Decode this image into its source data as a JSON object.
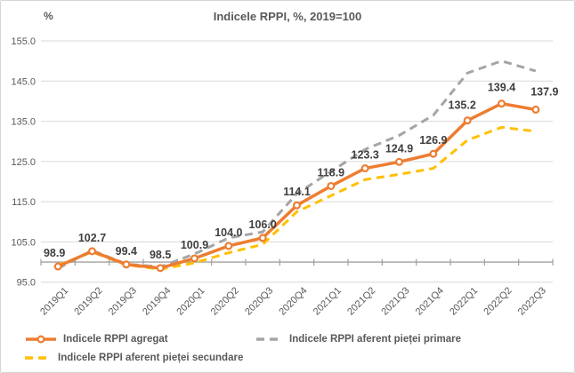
{
  "title": "Indicele RPPI, %, 2019=100",
  "unit_label": "%",
  "chart_data": {
    "type": "line",
    "title": "Indicele RPPI, %, 2019=100",
    "ylabel": "%",
    "xlabel": "",
    "categories": [
      "2019Q1",
      "2019Q2",
      "2019Q3",
      "2019Q4",
      "2020Q1",
      "2020Q2",
      "2020Q3",
      "2020Q4",
      "2021Q1",
      "2021Q2",
      "2021Q3",
      "2021Q4",
      "2022Q1",
      "2022Q2",
      "2022Q3"
    ],
    "series": [
      {
        "name": "Indicele RPPI agregat",
        "color": "#ED7D31",
        "line_style": "solid",
        "marker": "circle",
        "data_labels": true,
        "values": [
          98.9,
          102.7,
          99.4,
          98.5,
          100.9,
          104.0,
          106.0,
          114.1,
          118.9,
          123.3,
          124.9,
          126.9,
          135.2,
          139.4,
          137.9
        ]
      },
      {
        "name": "Indicele RPPI aferent pieței primare",
        "color": "#A5A5A5",
        "line_style": "dashed",
        "marker": "none",
        "data_labels": false,
        "values": [
          98.4,
          102.9,
          99.5,
          98.8,
          102.0,
          106.0,
          107.5,
          117.0,
          122.5,
          128.0,
          131.5,
          136.5,
          147.0,
          150.0,
          147.5
        ]
      },
      {
        "name": "Indicele RPPI aferent pieței secundare",
        "color": "#FFC000",
        "line_style": "dashed",
        "marker": "none",
        "data_labels": false,
        "values": [
          99.2,
          102.5,
          99.3,
          98.2,
          99.8,
          102.3,
          104.4,
          112.5,
          116.5,
          120.5,
          121.8,
          123.3,
          130.3,
          133.5,
          132.5
        ]
      }
    ],
    "ylim": [
      95,
      155
    ],
    "ytick_step": 10,
    "ytick_labels": [
      "95.0",
      "105.0",
      "115.0",
      "125.0",
      "135.0",
      "145.0",
      "155.0"
    ],
    "axis_cross_value": 100,
    "grid": true,
    "legend_position": "bottom",
    "colors": {
      "gridline": "#d9d9d9",
      "axis_line": "#a0a0a0",
      "tick_label": "#595959",
      "data_label": "#3f3f3f",
      "title": "#595959"
    }
  }
}
